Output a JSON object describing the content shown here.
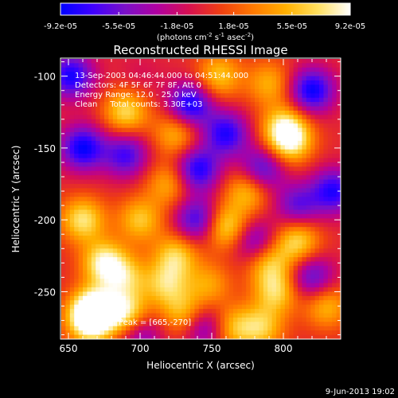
{
  "colorbar": {
    "tick_labels": [
      "-9.2e-05",
      "-5.5e-05",
      "-1.8e-05",
      "1.8e-05",
      "5.5e-05",
      "9.2e-05"
    ],
    "range": [
      -9.2e-05,
      9.2e-05
    ],
    "units_label": "(photons cm",
    "units_exp1": "-2",
    "units_mid": " s",
    "units_exp2": "-1",
    "units_mid2": " asec",
    "units_exp3": "-2",
    "units_end": ")",
    "colormap": [
      "#0000ff",
      "#3f00ff",
      "#7a10c8",
      "#b000a0",
      "#d81050",
      "#f04010",
      "#ff7a00",
      "#ffb000",
      "#ffe060",
      "#ffffff"
    ]
  },
  "chart_data": {
    "type": "heatmap",
    "title": "Reconstructed RHESSI Image",
    "xlabel": "Heliocentric X (arcsec)",
    "ylabel": "Heliocentric Y (arcsec)",
    "xlim": [
      645,
      840
    ],
    "ylim": [
      -283,
      -88
    ],
    "x_ticks": [
      650,
      700,
      750,
      800
    ],
    "y_ticks": [
      -100,
      -150,
      -200,
      -250
    ],
    "x_tick_labels": [
      "650",
      "700",
      "750",
      "800"
    ],
    "y_tick_labels": [
      "-100",
      "-150",
      "-200",
      "-250"
    ],
    "annotations": [
      "13-Sep-2003 04:46:44.000 to 04:51:44.000",
      "Detectors: 4F 5F 6F 7F 8F, Att 0",
      "Energy Range: 12.0 - 25.0 keV",
      "Clean     Total counts: 3.30E+03"
    ],
    "peak_label": "Position of Peak = [665,-270]",
    "peak": [
      665,
      -270
    ],
    "peak_value": 9.2e-05,
    "sources": [
      {
        "x": 665,
        "y": -270,
        "value": 9.2e-05
      },
      {
        "x": 668,
        "y": -262,
        "value": 8.8e-05
      },
      {
        "x": 690,
        "y": -265,
        "value": 8e-05
      },
      {
        "x": 675,
        "y": -230,
        "value": 8.5e-05
      },
      {
        "x": 660,
        "y": -200,
        "value": 7.5e-05
      },
      {
        "x": 700,
        "y": -200,
        "value": 6e-05
      },
      {
        "x": 720,
        "y": -175,
        "value": 5e-05
      },
      {
        "x": 700,
        "y": -100,
        "value": 8e-05
      },
      {
        "x": 690,
        "y": -125,
        "value": 7e-05
      },
      {
        "x": 725,
        "y": -140,
        "value": 5.5e-05
      },
      {
        "x": 725,
        "y": -225,
        "value": 6.5e-05
      },
      {
        "x": 718,
        "y": -245,
        "value": 6e-05
      },
      {
        "x": 730,
        "y": -265,
        "value": 5.5e-05
      },
      {
        "x": 760,
        "y": -205,
        "value": 7.5e-05
      },
      {
        "x": 775,
        "y": -180,
        "value": 6e-05
      },
      {
        "x": 755,
        "y": -100,
        "value": 6e-05
      },
      {
        "x": 790,
        "y": -105,
        "value": 5e-05
      },
      {
        "x": 805,
        "y": -145,
        "value": 8e-05
      },
      {
        "x": 800,
        "y": -135,
        "value": 6e-05
      },
      {
        "x": 810,
        "y": -215,
        "value": 7e-05
      },
      {
        "x": 790,
        "y": -230,
        "value": 6e-05
      },
      {
        "x": 795,
        "y": -250,
        "value": 6.5e-05
      },
      {
        "x": 785,
        "y": -275,
        "value": 6e-05
      },
      {
        "x": 765,
        "y": -275,
        "value": 5.5e-05
      },
      {
        "x": 830,
        "y": -260,
        "value": 5.5e-05
      },
      {
        "x": 748,
        "y": -245,
        "value": 4.5e-05
      },
      {
        "x": 690,
        "y": -240,
        "value": 5.5e-05
      },
      {
        "x": 700,
        "y": -100,
        "value": -9.2e-05,
        "note": ""
      },
      {
        "x": 652,
        "y": -100,
        "value": -8.5e-05
      },
      {
        "x": 660,
        "y": -150,
        "value": -9e-05
      },
      {
        "x": 690,
        "y": -155,
        "value": -7e-05
      },
      {
        "x": 735,
        "y": -120,
        "value": -9e-05
      },
      {
        "x": 740,
        "y": -165,
        "value": -8.5e-05
      },
      {
        "x": 760,
        "y": -140,
        "value": -8e-05
      },
      {
        "x": 785,
        "y": -165,
        "value": -7e-05
      },
      {
        "x": 820,
        "y": -110,
        "value": -9e-05
      },
      {
        "x": 835,
        "y": -180,
        "value": -8e-05
      },
      {
        "x": 810,
        "y": -190,
        "value": -6e-05
      },
      {
        "x": 740,
        "y": -200,
        "value": -7.5e-05
      },
      {
        "x": 780,
        "y": -215,
        "value": -6e-05
      },
      {
        "x": 745,
        "y": -275,
        "value": -5.5e-05
      },
      {
        "x": 700,
        "y": -280,
        "value": -5e-05
      },
      {
        "x": 820,
        "y": -240,
        "value": -6.5e-05
      }
    ]
  },
  "footer": {
    "date_label": "9-Jun-2013 19:02"
  }
}
